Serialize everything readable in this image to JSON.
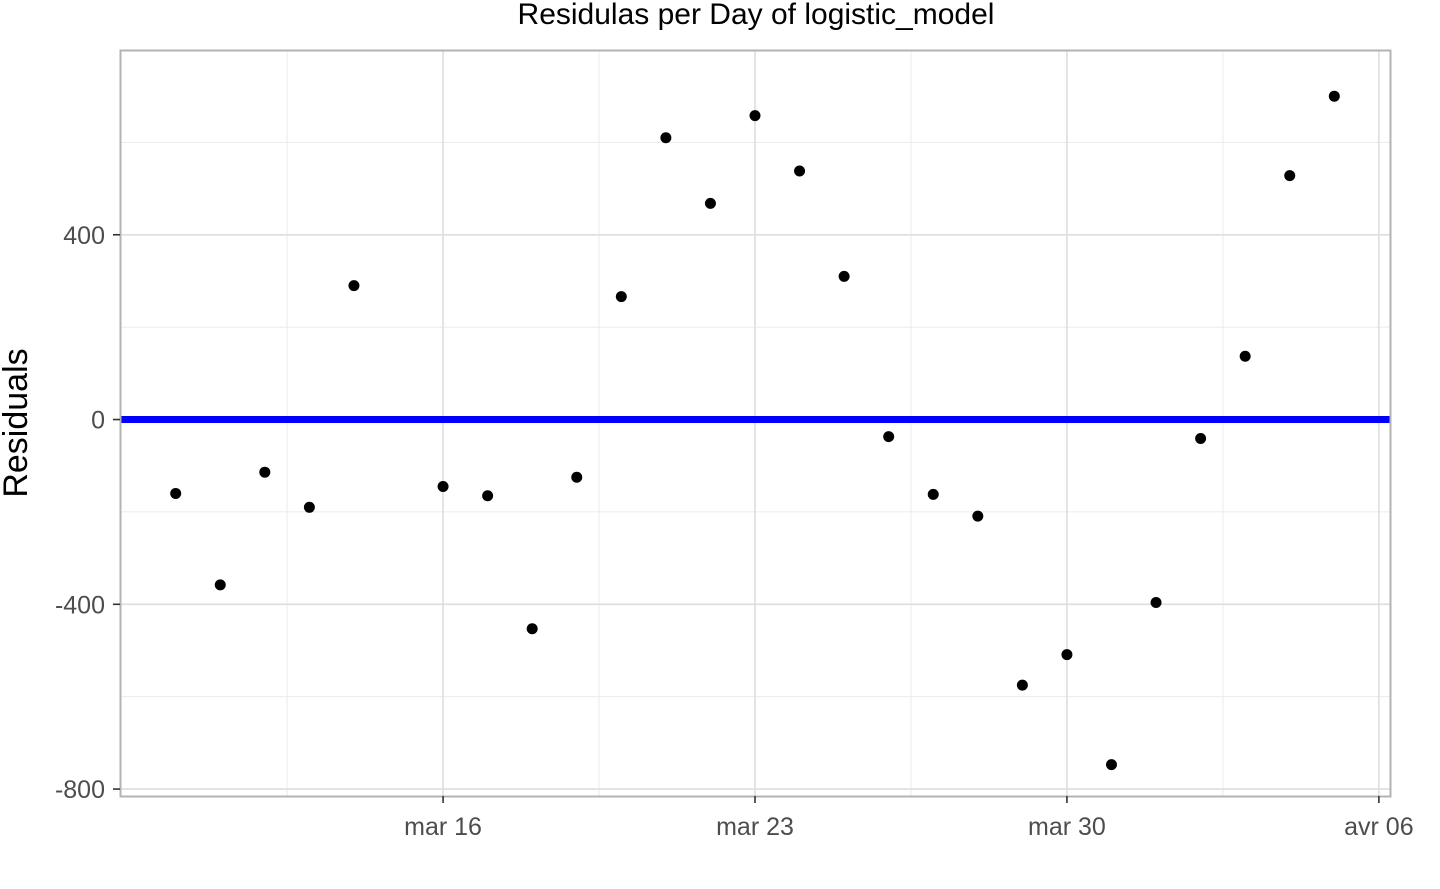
{
  "chart_data": {
    "type": "scatter",
    "title": "Residulas per Day of logistic_model",
    "xlabel": "",
    "ylabel": "Residuals",
    "x_axis": {
      "type": "date",
      "range": [
        "2020-03-08T18:00",
        "2020-04-06T06:00"
      ],
      "ticks": [
        {
          "value": "2020-03-16",
          "label": "mar 16"
        },
        {
          "value": "2020-03-23",
          "label": "mar 23"
        },
        {
          "value": "2020-03-30",
          "label": "mar 30"
        },
        {
          "value": "2020-04-06",
          "label": "avr 06"
        }
      ]
    },
    "y_axis": {
      "range": [
        -815,
        800
      ],
      "ticks": [
        {
          "value": 400,
          "label": "400"
        },
        {
          "value": 0,
          "label": "0"
        },
        {
          "value": -400,
          "label": "-400"
        },
        {
          "value": -800,
          "label": "-800"
        }
      ]
    },
    "grid": true,
    "reference_line": {
      "y": 0,
      "color": "#0000ff"
    },
    "point_color": "#000000",
    "series": [
      {
        "points": [
          {
            "x": "2020-03-10",
            "y": -160
          },
          {
            "x": "2020-03-11",
            "y": -358
          },
          {
            "x": "2020-03-12",
            "y": -114
          },
          {
            "x": "2020-03-13",
            "y": -190
          },
          {
            "x": "2020-03-14",
            "y": 290
          },
          {
            "x": "2020-03-16",
            "y": -145
          },
          {
            "x": "2020-03-17",
            "y": -165
          },
          {
            "x": "2020-03-18",
            "y": -453
          },
          {
            "x": "2020-03-19",
            "y": -125
          },
          {
            "x": "2020-03-20",
            "y": 266
          },
          {
            "x": "2020-03-21",
            "y": 610
          },
          {
            "x": "2020-03-22",
            "y": 468
          },
          {
            "x": "2020-03-23",
            "y": 658
          },
          {
            "x": "2020-03-24",
            "y": 538
          },
          {
            "x": "2020-03-25",
            "y": 310
          },
          {
            "x": "2020-03-26",
            "y": -37
          },
          {
            "x": "2020-03-27",
            "y": -162
          },
          {
            "x": "2020-03-28",
            "y": -209
          },
          {
            "x": "2020-03-29",
            "y": -575
          },
          {
            "x": "2020-03-30",
            "y": -509
          },
          {
            "x": "2020-03-31",
            "y": -747
          },
          {
            "x": "2020-04-01",
            "y": -396
          },
          {
            "x": "2020-04-02",
            "y": -41
          },
          {
            "x": "2020-04-03",
            "y": 137
          },
          {
            "x": "2020-04-04",
            "y": 528
          },
          {
            "x": "2020-04-05",
            "y": 700
          }
        ]
      }
    ]
  }
}
